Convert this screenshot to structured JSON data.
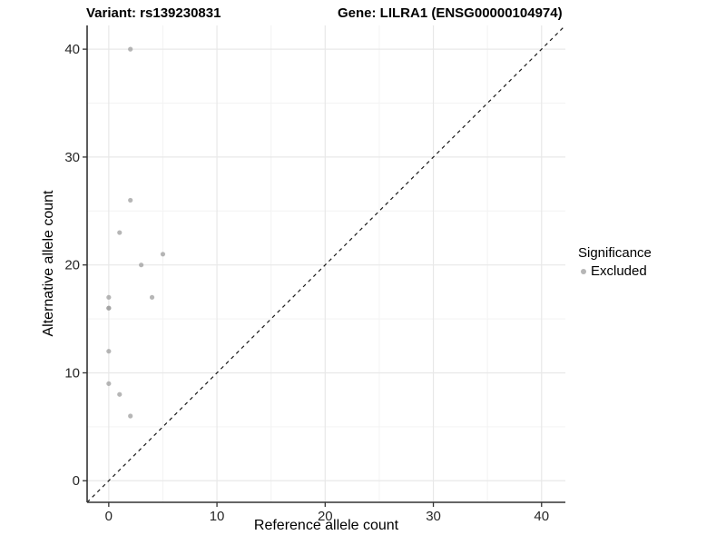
{
  "page": {
    "background": "#ffffff"
  },
  "chart_data": {
    "type": "scatter",
    "title_left": "Variant: rs139230831",
    "title_right": "Gene: LILRA1 (ENSG00000104974)",
    "xlabel": "Reference allele count",
    "ylabel": "Alternative allele count",
    "xlim": [
      -2,
      42.2
    ],
    "ylim": [
      -2,
      42.2
    ],
    "x_major_ticks": [
      0,
      10,
      20,
      30,
      40
    ],
    "x_minor_ticks": [
      5,
      15,
      25,
      35
    ],
    "y_major_ticks": [
      0,
      10,
      20,
      30,
      40
    ],
    "y_minor_ticks": [
      5,
      15,
      25,
      35
    ],
    "grid": "major+minor",
    "identity_line": {
      "style": "dashed",
      "slope": 1,
      "intercept": 0
    },
    "points": [
      [
        2,
        40
      ],
      [
        2,
        26
      ],
      [
        1,
        23
      ],
      [
        5,
        21
      ],
      [
        3,
        20
      ],
      [
        0,
        17
      ],
      [
        4,
        17
      ],
      [
        0,
        16
      ],
      [
        0,
        16
      ],
      [
        0,
        12
      ],
      [
        0,
        9
      ],
      [
        1,
        8
      ],
      [
        2,
        6
      ]
    ],
    "legend": {
      "title": "Significance",
      "position": "right",
      "items": [
        {
          "label": "Excluded",
          "color": "#b6b6b6"
        }
      ]
    },
    "colors": {
      "point": "#9e9e9e",
      "point_opacity": 0.75,
      "grid_major": "#e8e8e8",
      "grid_minor": "#f3f3f3",
      "axis_line": "#333333",
      "tick": "#333333",
      "tick_text": "#262626",
      "identity": "#1a1a1a",
      "title_text": "#000000"
    }
  }
}
